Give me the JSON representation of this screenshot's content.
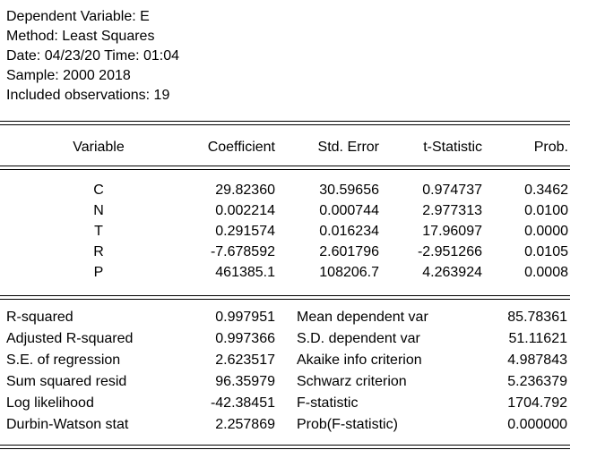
{
  "header": {
    "dep_var": "Dependent Variable: E",
    "method": "Method: Least Squares",
    "date_time": "Date: 04/23/20   Time: 01:04",
    "sample": "Sample: 2000 2018",
    "obs": "Included observations: 19"
  },
  "columns": {
    "variable": "Variable",
    "coefficient": "Coefficient",
    "std_error": "Std. Error",
    "t_stat": "t-Statistic",
    "prob": "Prob."
  },
  "rows": [
    {
      "var": "C",
      "coef": "29.82360",
      "se": "30.59656",
      "t": "0.974737",
      "p": "0.3462"
    },
    {
      "var": "N",
      "coef": "0.002214",
      "se": "0.000744",
      "t": "2.977313",
      "p": "0.0100"
    },
    {
      "var": "T",
      "coef": "0.291574",
      "se": "0.016234",
      "t": "17.96097",
      "p": "0.0000"
    },
    {
      "var": "R",
      "coef": "-7.678592",
      "se": "2.601796",
      "t": "-2.951266",
      "p": "0.0105"
    },
    {
      "var": "P",
      "coef": "461385.1",
      "se": "108206.7",
      "t": "4.263924",
      "p": "0.0008"
    }
  ],
  "stats": [
    {
      "l1": "R-squared",
      "v1": "0.997951",
      "l2": "Mean dependent var",
      "v2": "85.78361"
    },
    {
      "l1": "Adjusted R-squared",
      "v1": "0.997366",
      "l2": "S.D. dependent var",
      "v2": "51.11621"
    },
    {
      "l1": "S.E. of regression",
      "v1": "2.623517",
      "l2": "Akaike info criterion",
      "v2": "4.987843"
    },
    {
      "l1": "Sum squared resid",
      "v1": "96.35979",
      "l2": "Schwarz criterion",
      "v2": "5.236379"
    },
    {
      "l1": "Log likelihood",
      "v1": "-42.38451",
      "l2": "F-statistic",
      "v2": "1704.792"
    },
    {
      "l1": "Durbin-Watson stat",
      "v1": "2.257869",
      "l2": "Prob(F-statistic)",
      "v2": "0.000000"
    }
  ]
}
